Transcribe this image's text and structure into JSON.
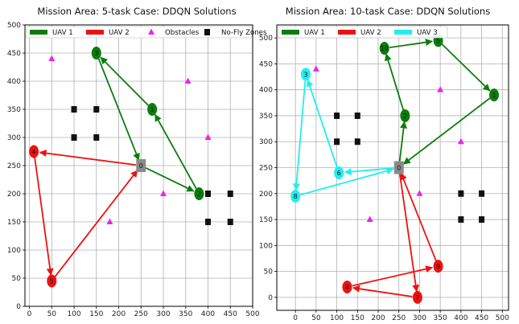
{
  "chart_data": [
    {
      "type": "scatter",
      "title": "Mission Area: 5-task Case: DDQN Solutions",
      "xlabel": "",
      "ylabel": "",
      "xlim": [
        -10,
        500
      ],
      "ylim": [
        0,
        500
      ],
      "xticks": [
        0,
        50,
        100,
        150,
        200,
        250,
        300,
        350,
        400,
        450,
        500
      ],
      "yticks": [
        0,
        50,
        100,
        150,
        200,
        250,
        300,
        350,
        400,
        450,
        500
      ],
      "grid": true,
      "legend_position": "top",
      "legend": [
        {
          "label": "UAV 1",
          "kind": "line",
          "color": "#0a7d0a"
        },
        {
          "label": "UAV 2",
          "kind": "line",
          "color": "#ee1111"
        },
        {
          "label": "Obstacles",
          "kind": "triangle",
          "color": "#ee22ee"
        },
        {
          "label": "No-Fly Zones",
          "kind": "square",
          "color": "#111111"
        }
      ],
      "depot": {
        "label": "0",
        "x": 250,
        "y": 250
      },
      "tasks": [
        {
          "id": "1",
          "x": 275,
          "y": 350,
          "uav": 1
        },
        {
          "id": "2",
          "x": 380,
          "y": 200,
          "uav": 1
        },
        {
          "id": "3",
          "x": 150,
          "y": 450,
          "uav": 1
        },
        {
          "id": "4",
          "x": 10,
          "y": 275,
          "uav": 2
        },
        {
          "id": "5",
          "x": 50,
          "y": 45,
          "uav": 2
        }
      ],
      "routes": [
        {
          "uav": 1,
          "color": "#0a7d0a",
          "path": [
            [
              250,
              250
            ],
            [
              380,
              200
            ],
            [
              275,
              350
            ],
            [
              150,
              450
            ],
            [
              250,
              250
            ]
          ]
        },
        {
          "uav": 2,
          "color": "#ee1111",
          "path": [
            [
              250,
              250
            ],
            [
              10,
              275
            ],
            [
              50,
              45
            ],
            [
              250,
              250
            ]
          ]
        }
      ],
      "obstacles": [
        [
          50,
          440
        ],
        [
          355,
          400
        ],
        [
          400,
          300
        ],
        [
          300,
          200
        ],
        [
          180,
          150
        ]
      ],
      "no_fly_zones": [
        [
          100,
          350
        ],
        [
          150,
          350
        ],
        [
          100,
          300
        ],
        [
          150,
          300
        ],
        [
          400,
          200
        ],
        [
          450,
          200
        ],
        [
          400,
          150
        ],
        [
          450,
          150
        ]
      ]
    },
    {
      "type": "scatter",
      "title": "Mission Area: 10-task Case: DDQN Solutions",
      "xlabel": "",
      "ylabel": "",
      "xlim": [
        -45,
        515
      ],
      "ylim": [
        -25,
        525
      ],
      "xticks": [
        0,
        50,
        100,
        150,
        200,
        250,
        300,
        350,
        400,
        450,
        500
      ],
      "yticks": [
        0,
        50,
        100,
        150,
        200,
        250,
        300,
        350,
        400,
        450,
        500
      ],
      "grid": true,
      "legend_position": "top",
      "legend": [
        {
          "label": "UAV 1",
          "kind": "line",
          "color": "#0a7d0a"
        },
        {
          "label": "UAV 2",
          "kind": "line",
          "color": "#ee1111"
        },
        {
          "label": "UAV 3",
          "kind": "line",
          "color": "#22eeee"
        }
      ],
      "depot": {
        "label": "0",
        "x": 250,
        "y": 250
      },
      "tasks": [
        {
          "id": "1",
          "x": 480,
          "y": 390,
          "uav": 1
        },
        {
          "id": "2",
          "x": 265,
          "y": 350,
          "uav": 1
        },
        {
          "id": "3",
          "x": 25,
          "y": 430,
          "uav": 3
        },
        {
          "id": "4",
          "x": 125,
          "y": 20,
          "uav": 2
        },
        {
          "id": "5",
          "x": 345,
          "y": 495,
          "uav": 1
        },
        {
          "id": "6",
          "x": 105,
          "y": 240,
          "uav": 3
        },
        {
          "id": "7",
          "x": 295,
          "y": 0,
          "uav": 2
        },
        {
          "id": "8",
          "x": 0,
          "y": 195,
          "uav": 3
        },
        {
          "id": "9",
          "x": 345,
          "y": 60,
          "uav": 2
        },
        {
          "id": "10",
          "x": 215,
          "y": 480,
          "uav": 1
        }
      ],
      "routes": [
        {
          "uav": 1,
          "color": "#0a7d0a",
          "path": [
            [
              250,
              250
            ],
            [
              265,
              350
            ],
            [
              215,
              480
            ],
            [
              345,
              495
            ],
            [
              480,
              390
            ],
            [
              250,
              250
            ]
          ]
        },
        {
          "uav": 2,
          "color": "#ee1111",
          "path": [
            [
              250,
              250
            ],
            [
              295,
              0
            ],
            [
              125,
              20
            ],
            [
              345,
              60
            ],
            [
              250,
              250
            ]
          ]
        },
        {
          "uav": 3,
          "color": "#22eeee",
          "path": [
            [
              250,
              250
            ],
            [
              105,
              240
            ],
            [
              25,
              430
            ],
            [
              0,
              195
            ],
            [
              250,
              250
            ]
          ]
        }
      ],
      "obstacles": [
        [
          50,
          440
        ],
        [
          350,
          400
        ],
        [
          400,
          300
        ],
        [
          300,
          200
        ],
        [
          180,
          150
        ]
      ],
      "no_fly_zones": [
        [
          100,
          350
        ],
        [
          150,
          350
        ],
        [
          100,
          300
        ],
        [
          150,
          300
        ],
        [
          400,
          200
        ],
        [
          450,
          200
        ],
        [
          400,
          150
        ],
        [
          450,
          150
        ]
      ]
    }
  ]
}
